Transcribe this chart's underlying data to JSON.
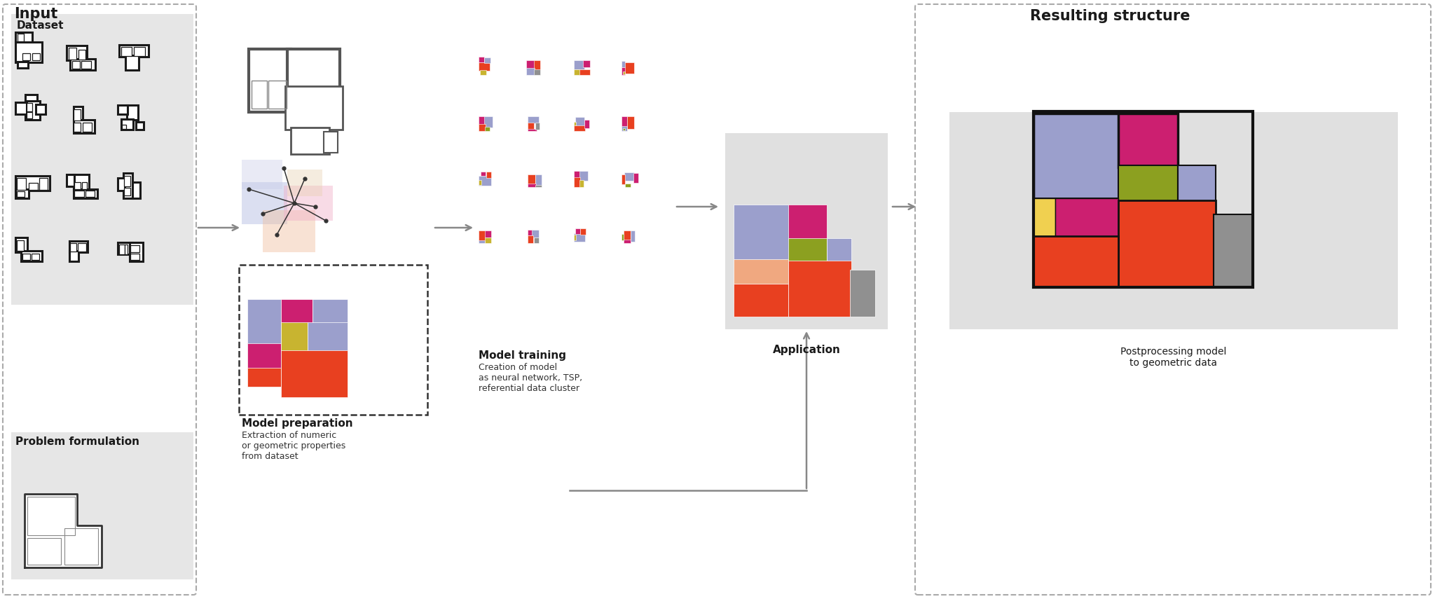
{
  "bg_color": "#ffffff",
  "panel_bg_light": "#e8e8e8",
  "panel_bg_dark": "#d8d8d8",
  "dashed_color": "#aaaaaa",
  "arrow_color": "#888888",
  "colors": {
    "red": "#e84020",
    "magenta": "#cc1f70",
    "lavender": "#9b9fcc",
    "yellow": "#c8b430",
    "olive": "#8ca020",
    "salmon": "#f0a080",
    "gray": "#909090",
    "mid_gray": "#666666",
    "dark": "#222222"
  },
  "labels": {
    "input": "Input",
    "dataset": "Dataset",
    "problem": "Problem formulation",
    "model_prep": "Model preparation",
    "model_prep_sub": "Extraction of numeric\nor geometric properties\nfrom dataset",
    "model_train": "Model training",
    "model_train_sub": "Creation of model\nas neural network, TSP,\nreferential data cluster",
    "application": "Application",
    "resulting": "Resulting structure",
    "postprocess": "Postprocessing model\nto geometric data"
  }
}
